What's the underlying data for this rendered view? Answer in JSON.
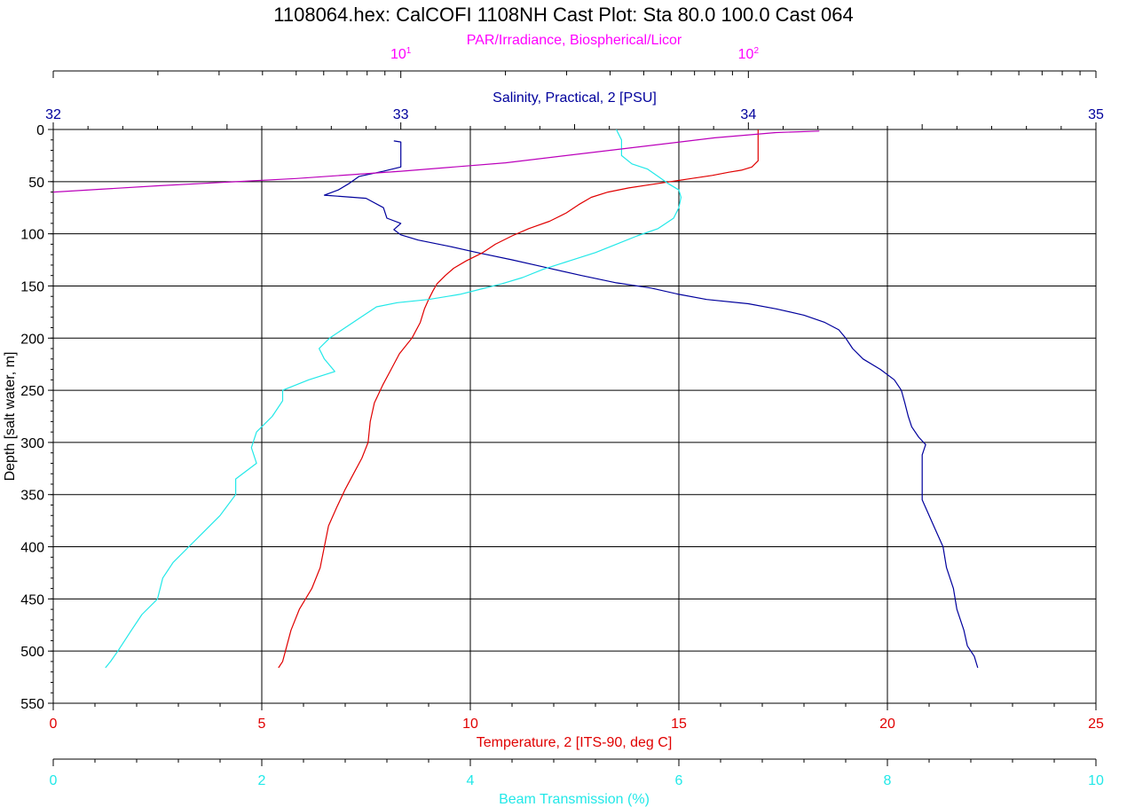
{
  "chart_data": {
    "type": "line",
    "title": "1108064.hex: CalCOFI 1108NH Cast Plot: Sta 80.0 100.0 Cast 064",
    "y_axis": {
      "label": "Depth [salt water, m]",
      "range": [
        0,
        550
      ],
      "ticks": [
        "0",
        "50",
        "100",
        "150",
        "200",
        "250",
        "300",
        "350",
        "400",
        "450",
        "500",
        "550"
      ],
      "direction": "down"
    },
    "x_axes": {
      "par": {
        "label": "PAR/Irradiance, Biospherical/Licor",
        "scale": "log",
        "range": [
          1,
          1000
        ],
        "major_ticks": [
          {
            "base": "10",
            "exp": "1",
            "value": 10
          },
          {
            "base": "10",
            "exp": "2",
            "value": 100
          }
        ],
        "color": "#ff00ff",
        "position": "top"
      },
      "salinity": {
        "label": "Salinity, Practical, 2 [PSU]",
        "range": [
          32,
          35
        ],
        "ticks": [
          "32",
          "33",
          "34",
          "35"
        ],
        "color": "#00009c",
        "position": "top"
      },
      "temperature": {
        "label": "Temperature, 2 [ITS-90, deg C]",
        "range": [
          0,
          25
        ],
        "ticks": [
          "0",
          "5",
          "10",
          "15",
          "20",
          "25"
        ],
        "color": "#e00000",
        "position": "bottom"
      },
      "beam": {
        "label": "Beam Transmission (%)",
        "range": [
          0,
          10
        ],
        "ticks": [
          "0",
          "2",
          "4",
          "6",
          "8",
          "10"
        ],
        "color": "#22e8e8",
        "position": "bottom"
      }
    },
    "grid": true,
    "series": [
      {
        "axis": "salinity",
        "color": "#00009c",
        "points": [
          [
            32.98,
            11
          ],
          [
            33.0,
            12
          ],
          [
            33.0,
            30
          ],
          [
            33.0,
            36
          ],
          [
            32.95,
            40
          ],
          [
            32.88,
            45
          ],
          [
            32.85,
            52
          ],
          [
            32.82,
            58
          ],
          [
            32.78,
            63
          ],
          [
            32.9,
            66
          ],
          [
            32.95,
            75
          ],
          [
            32.96,
            85
          ],
          [
            33.0,
            90
          ],
          [
            32.98,
            96
          ],
          [
            33.0,
            101
          ],
          [
            33.05,
            106
          ],
          [
            33.14,
            112
          ],
          [
            33.22,
            118
          ],
          [
            33.32,
            125
          ],
          [
            33.4,
            131
          ],
          [
            33.52,
            140
          ],
          [
            33.62,
            147
          ],
          [
            33.72,
            152
          ],
          [
            33.8,
            158
          ],
          [
            33.88,
            163
          ],
          [
            34.0,
            167
          ],
          [
            34.08,
            172
          ],
          [
            34.16,
            178
          ],
          [
            34.22,
            185
          ],
          [
            34.26,
            192
          ],
          [
            34.28,
            200
          ],
          [
            34.3,
            210
          ],
          [
            34.33,
            220
          ],
          [
            34.38,
            230
          ],
          [
            34.42,
            240
          ],
          [
            34.44,
            250
          ],
          [
            34.45,
            262
          ],
          [
            34.46,
            275
          ],
          [
            34.47,
            285
          ],
          [
            34.49,
            295
          ],
          [
            34.51,
            302
          ],
          [
            34.5,
            312
          ],
          [
            34.5,
            325
          ],
          [
            34.5,
            340
          ],
          [
            34.5,
            355
          ],
          [
            34.52,
            370
          ],
          [
            34.54,
            385
          ],
          [
            34.56,
            400
          ],
          [
            34.57,
            420
          ],
          [
            34.59,
            440
          ],
          [
            34.6,
            460
          ],
          [
            34.62,
            480
          ],
          [
            34.63,
            495
          ],
          [
            34.65,
            505
          ],
          [
            34.66,
            516
          ]
        ]
      },
      {
        "axis": "temperature",
        "color": "#e00000",
        "points": [
          [
            16.9,
            0
          ],
          [
            16.9,
            10
          ],
          [
            16.9,
            20
          ],
          [
            16.9,
            30
          ],
          [
            16.75,
            36
          ],
          [
            16.5,
            39
          ],
          [
            16.2,
            41
          ],
          [
            15.8,
            44
          ],
          [
            15.3,
            47
          ],
          [
            14.8,
            50
          ],
          [
            14.3,
            53
          ],
          [
            13.8,
            56
          ],
          [
            13.3,
            60
          ],
          [
            12.9,
            65
          ],
          [
            12.6,
            72
          ],
          [
            12.3,
            80
          ],
          [
            11.9,
            88
          ],
          [
            11.4,
            95
          ],
          [
            11.0,
            102
          ],
          [
            10.6,
            110
          ],
          [
            10.3,
            118
          ],
          [
            9.9,
            126
          ],
          [
            9.6,
            133
          ],
          [
            9.4,
            140
          ],
          [
            9.2,
            148
          ],
          [
            9.1,
            155
          ],
          [
            9.0,
            163
          ],
          [
            8.9,
            172
          ],
          [
            8.8,
            185
          ],
          [
            8.6,
            200
          ],
          [
            8.3,
            215
          ],
          [
            8.1,
            230
          ],
          [
            7.9,
            245
          ],
          [
            7.7,
            262
          ],
          [
            7.6,
            280
          ],
          [
            7.55,
            300
          ],
          [
            7.4,
            315
          ],
          [
            7.2,
            330
          ],
          [
            7.0,
            345
          ],
          [
            6.8,
            362
          ],
          [
            6.6,
            380
          ],
          [
            6.5,
            400
          ],
          [
            6.4,
            420
          ],
          [
            6.2,
            440
          ],
          [
            5.9,
            460
          ],
          [
            5.7,
            480
          ],
          [
            5.6,
            495
          ],
          [
            5.5,
            510
          ],
          [
            5.4,
            516
          ]
        ]
      },
      {
        "axis": "beam",
        "color": "#22e8e8",
        "points": [
          [
            5.4,
            0
          ],
          [
            5.45,
            10
          ],
          [
            5.45,
            25
          ],
          [
            5.55,
            33
          ],
          [
            5.7,
            38
          ],
          [
            5.8,
            45
          ],
          [
            5.9,
            52
          ],
          [
            6.0,
            58
          ],
          [
            6.02,
            65
          ],
          [
            6.0,
            75
          ],
          [
            5.95,
            85
          ],
          [
            5.8,
            95
          ],
          [
            5.6,
            102
          ],
          [
            5.4,
            110
          ],
          [
            5.2,
            118
          ],
          [
            4.95,
            126
          ],
          [
            4.7,
            134
          ],
          [
            4.5,
            142
          ],
          [
            4.3,
            148
          ],
          [
            4.1,
            153
          ],
          [
            3.9,
            158
          ],
          [
            3.6,
            163
          ],
          [
            3.3,
            166
          ],
          [
            3.1,
            170
          ],
          [
            2.95,
            180
          ],
          [
            2.8,
            190
          ],
          [
            2.65,
            200
          ],
          [
            2.55,
            210
          ],
          [
            2.6,
            220
          ],
          [
            2.7,
            232
          ],
          [
            2.45,
            240
          ],
          [
            2.2,
            250
          ],
          [
            2.2,
            260
          ],
          [
            2.1,
            275
          ],
          [
            1.95,
            290
          ],
          [
            1.9,
            305
          ],
          [
            1.95,
            320
          ],
          [
            1.75,
            335
          ],
          [
            1.75,
            350
          ],
          [
            1.6,
            370
          ],
          [
            1.45,
            385
          ],
          [
            1.3,
            400
          ],
          [
            1.15,
            415
          ],
          [
            1.05,
            430
          ],
          [
            1.0,
            450
          ],
          [
            0.85,
            465
          ],
          [
            0.75,
            480
          ],
          [
            0.62,
            500
          ],
          [
            0.55,
            510
          ],
          [
            0.5,
            516
          ]
        ]
      },
      {
        "axis": "par",
        "color": "#bb00bb",
        "points": [
          [
            160,
            1.5
          ],
          [
            120,
            3
          ],
          [
            80,
            8
          ],
          [
            40,
            20
          ],
          [
            20,
            32
          ],
          [
            10,
            40
          ],
          [
            5,
            47
          ],
          [
            2,
            54
          ],
          [
            1,
            60
          ]
        ]
      }
    ]
  }
}
